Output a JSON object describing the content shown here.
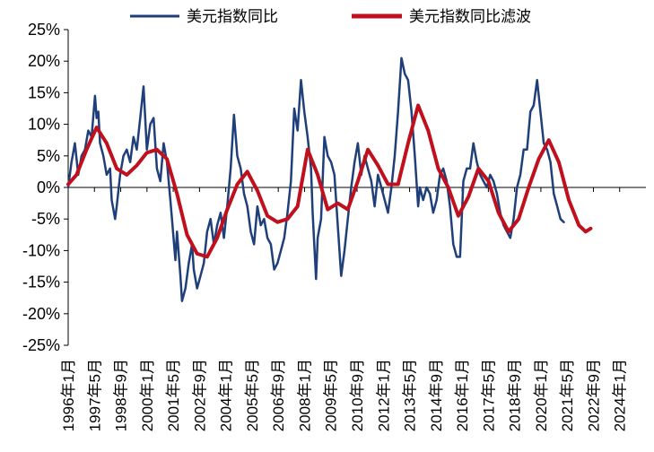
{
  "chart_data": {
    "type": "line",
    "title": "",
    "xlabel": "",
    "ylabel": "",
    "ylim": [
      -25,
      25
    ],
    "ytick_labels": [
      "25%",
      "20%",
      "15%",
      "10%",
      "5%",
      "0%",
      "-5%",
      "-10%",
      "-15%",
      "-20%",
      "-25%"
    ],
    "x_tick_labels": [
      "1996年1月",
      "1997年5月",
      "1998年9月",
      "2000年1月",
      "2001年5月",
      "2002年9月",
      "2004年1月",
      "2005年5月",
      "2006年9月",
      "2008年1月",
      "2009年5月",
      "2010年9月",
      "2012年1月",
      "2013年5月",
      "2014年9月",
      "2016年1月",
      "2017年5月",
      "2018年9月",
      "2020年1月",
      "2021年5月",
      "2022年9月",
      "2024年1月"
    ],
    "x_range": [
      "1996-01",
      "2024-10"
    ],
    "grid": false,
    "legend": "top",
    "series": [
      {
        "name": "美元指数同比",
        "color": "#1f3f7a",
        "points": [
          [
            "1996-01",
            0
          ],
          [
            "1996-03",
            4
          ],
          [
            "1996-05",
            7
          ],
          [
            "1996-07",
            2
          ],
          [
            "1996-09",
            5
          ],
          [
            "1996-11",
            6
          ],
          [
            "1997-01",
            9
          ],
          [
            "1997-03",
            8
          ],
          [
            "1997-05",
            14.5
          ],
          [
            "1997-06",
            11
          ],
          [
            "1997-07",
            12
          ],
          [
            "1997-08",
            7
          ],
          [
            "1997-10",
            5
          ],
          [
            "1997-12",
            2
          ],
          [
            "1998-02",
            3
          ],
          [
            "1998-03",
            -2
          ],
          [
            "1998-05",
            -5
          ],
          [
            "1998-06",
            -3
          ],
          [
            "1998-08",
            2
          ],
          [
            "1998-10",
            5
          ],
          [
            "1998-12",
            6
          ],
          [
            "1999-02",
            4
          ],
          [
            "1999-04",
            8
          ],
          [
            "1999-06",
            6
          ],
          [
            "1999-08",
            11
          ],
          [
            "1999-10",
            16
          ],
          [
            "1999-12",
            6
          ],
          [
            "2000-02",
            10
          ],
          [
            "2000-04",
            11
          ],
          [
            "2000-06",
            3
          ],
          [
            "2000-08",
            1
          ],
          [
            "2000-10",
            7
          ],
          [
            "2000-12",
            4
          ],
          [
            "2001-02",
            -2
          ],
          [
            "2001-03",
            -5
          ],
          [
            "2001-05",
            -11.5
          ],
          [
            "2001-06",
            -7
          ],
          [
            "2001-08",
            -14
          ],
          [
            "2001-09",
            -18
          ],
          [
            "2001-11",
            -16
          ],
          [
            "2002-01",
            -12
          ],
          [
            "2002-03",
            -9
          ],
          [
            "2002-04",
            -13
          ],
          [
            "2002-06",
            -16
          ],
          [
            "2002-08",
            -14
          ],
          [
            "2002-10",
            -12
          ],
          [
            "2002-12",
            -7
          ],
          [
            "2003-02",
            -5
          ],
          [
            "2003-04",
            -9
          ],
          [
            "2003-06",
            -6
          ],
          [
            "2003-08",
            -4
          ],
          [
            "2003-10",
            -8
          ],
          [
            "2003-12",
            -3
          ],
          [
            "2004-02",
            3
          ],
          [
            "2004-04",
            11.5
          ],
          [
            "2004-06",
            5
          ],
          [
            "2004-08",
            3
          ],
          [
            "2004-10",
            -1
          ],
          [
            "2004-12",
            -3
          ],
          [
            "2005-02",
            -7
          ],
          [
            "2005-04",
            -9
          ],
          [
            "2005-06",
            -3
          ],
          [
            "2005-08",
            -6
          ],
          [
            "2005-10",
            -5
          ],
          [
            "2005-12",
            -8
          ],
          [
            "2006-02",
            -9
          ],
          [
            "2006-04",
            -13
          ],
          [
            "2006-06",
            -12
          ],
          [
            "2006-08",
            -10
          ],
          [
            "2006-10",
            -8
          ],
          [
            "2006-12",
            -4
          ],
          [
            "2007-02",
            1
          ],
          [
            "2007-04",
            12.5
          ],
          [
            "2007-06",
            9
          ],
          [
            "2007-08",
            17
          ],
          [
            "2007-10",
            12
          ],
          [
            "2007-12",
            8
          ],
          [
            "2008-02",
            3
          ],
          [
            "2008-03",
            -4
          ],
          [
            "2008-05",
            -14.5
          ],
          [
            "2008-06",
            -8
          ],
          [
            "2008-08",
            -5
          ],
          [
            "2008-10",
            8
          ],
          [
            "2008-12",
            5
          ],
          [
            "2009-02",
            4
          ],
          [
            "2009-04",
            2
          ],
          [
            "2009-06",
            -6
          ],
          [
            "2009-08",
            -14
          ],
          [
            "2009-10",
            -10
          ],
          [
            "2009-12",
            -5
          ],
          [
            "2010-02",
            0
          ],
          [
            "2010-04",
            4
          ],
          [
            "2010-06",
            7
          ],
          [
            "2010-08",
            2
          ],
          [
            "2010-10",
            5
          ],
          [
            "2010-12",
            3
          ],
          [
            "2011-02",
            1
          ],
          [
            "2011-04",
            -3
          ],
          [
            "2011-06",
            2
          ],
          [
            "2011-08",
            0
          ],
          [
            "2011-10",
            -2
          ],
          [
            "2011-12",
            -4
          ],
          [
            "2012-02",
            0
          ],
          [
            "2012-04",
            5
          ],
          [
            "2012-06",
            12
          ],
          [
            "2012-08",
            20.5
          ],
          [
            "2012-10",
            18
          ],
          [
            "2012-12",
            17
          ],
          [
            "2013-02",
            12
          ],
          [
            "2013-04",
            5
          ],
          [
            "2013-06",
            -3
          ],
          [
            "2013-07",
            0
          ],
          [
            "2013-09",
            -2
          ],
          [
            "2013-11",
            0
          ],
          [
            "2014-01",
            -1
          ],
          [
            "2014-03",
            -4
          ],
          [
            "2014-05",
            -2
          ],
          [
            "2014-07",
            2
          ],
          [
            "2014-09",
            3
          ],
          [
            "2014-11",
            1
          ],
          [
            "2015-01",
            -3
          ],
          [
            "2015-03",
            -9
          ],
          [
            "2015-05",
            -11
          ],
          [
            "2015-07",
            -11
          ],
          [
            "2015-09",
            1
          ],
          [
            "2015-11",
            3
          ],
          [
            "2016-01",
            3
          ],
          [
            "2016-03",
            7
          ],
          [
            "2016-05",
            4
          ],
          [
            "2016-07",
            2
          ],
          [
            "2016-09",
            1
          ],
          [
            "2016-11",
            0
          ],
          [
            "2017-01",
            2
          ],
          [
            "2017-03",
            1
          ],
          [
            "2017-05",
            -1
          ],
          [
            "2017-07",
            -4
          ],
          [
            "2017-09",
            -6
          ],
          [
            "2017-11",
            -7
          ],
          [
            "2018-01",
            -8
          ],
          [
            "2018-03",
            -5
          ],
          [
            "2018-05",
            0
          ],
          [
            "2018-07",
            2
          ],
          [
            "2018-09",
            6
          ],
          [
            "2018-11",
            6
          ],
          [
            "2019-01",
            12
          ],
          [
            "2019-03",
            13
          ],
          [
            "2019-05",
            17
          ],
          [
            "2019-07",
            12
          ],
          [
            "2019-09",
            7
          ],
          [
            "2019-11",
            6
          ],
          [
            "2020-01",
            4
          ],
          [
            "2020-03",
            -1
          ],
          [
            "2020-05",
            -3
          ],
          [
            "2020-07",
            -5
          ],
          [
            "2020-09",
            -5.5
          ]
        ]
      },
      {
        "name": "美元指数同比滤波",
        "color": "#c0101d",
        "points": [
          [
            "1996-01",
            0.5
          ],
          [
            "1996-06",
            2
          ],
          [
            "1996-12",
            6
          ],
          [
            "1997-06",
            9.5
          ],
          [
            "1997-12",
            7
          ],
          [
            "1998-06",
            3
          ],
          [
            "1998-12",
            2
          ],
          [
            "1999-06",
            3.5
          ],
          [
            "1999-12",
            5.5
          ],
          [
            "2000-06",
            6
          ],
          [
            "2000-12",
            4.5
          ],
          [
            "2001-06",
            -1
          ],
          [
            "2001-12",
            -7.5
          ],
          [
            "2002-06",
            -10.5
          ],
          [
            "2002-12",
            -11
          ],
          [
            "2003-06",
            -8
          ],
          [
            "2003-12",
            -3.5
          ],
          [
            "2004-06",
            0.5
          ],
          [
            "2004-12",
            2.5
          ],
          [
            "2005-06",
            -0.5
          ],
          [
            "2005-12",
            -4.5
          ],
          [
            "2006-06",
            -5.5
          ],
          [
            "2006-12",
            -5
          ],
          [
            "2007-06",
            -3
          ],
          [
            "2007-12",
            6
          ],
          [
            "2008-06",
            2
          ],
          [
            "2008-12",
            -3.5
          ],
          [
            "2009-06",
            -2.5
          ],
          [
            "2009-12",
            -3.5
          ],
          [
            "2010-06",
            1
          ],
          [
            "2010-12",
            6
          ],
          [
            "2011-06",
            3.5
          ],
          [
            "2011-12",
            0.5
          ],
          [
            "2012-06",
            0.5
          ],
          [
            "2012-12",
            7
          ],
          [
            "2013-06",
            13
          ],
          [
            "2013-12",
            9
          ],
          [
            "2014-06",
            3
          ],
          [
            "2014-12",
            0
          ],
          [
            "2015-06",
            -4.5
          ],
          [
            "2015-12",
            -1.5
          ],
          [
            "2016-06",
            3
          ],
          [
            "2016-12",
            1
          ],
          [
            "2017-06",
            -4
          ],
          [
            "2017-12",
            -7
          ],
          [
            "2018-06",
            -5
          ],
          [
            "2018-12",
            0
          ],
          [
            "2019-06",
            4.5
          ],
          [
            "2019-12",
            7.5
          ],
          [
            "2020-06",
            4
          ],
          [
            "2020-12",
            -2
          ],
          [
            "2021-06",
            -6
          ],
          [
            "2021-10",
            -7
          ],
          [
            "2022-01",
            -6.5
          ]
        ]
      }
    ]
  }
}
